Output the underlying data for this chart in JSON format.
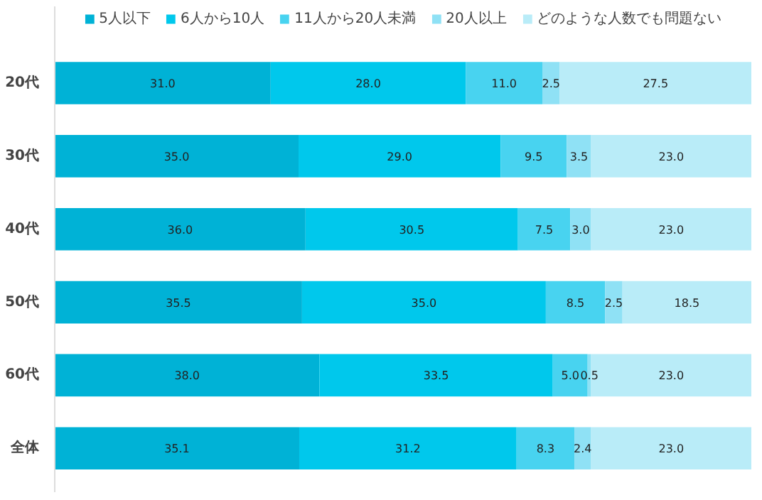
{
  "chart_data": {
    "type": "bar",
    "orientation": "horizontal",
    "stacked": true,
    "legend": "top",
    "grid": false,
    "categories": [
      "20代",
      "30代",
      "40代",
      "50代",
      "60代",
      "全体"
    ],
    "series": [
      {
        "name": "5人以下",
        "color": "#00b2d6",
        "values": [
          31.0,
          35.0,
          36.0,
          35.5,
          38.0,
          35.1
        ],
        "value_labels": [
          "31.0",
          "35.0",
          "36.0",
          "35.5",
          "38.0",
          "35.1"
        ]
      },
      {
        "name": "6人から10人",
        "color": "#00c8ec",
        "values": [
          28.0,
          29.0,
          30.5,
          35.0,
          33.5,
          31.2
        ],
        "value_labels": [
          "28.0",
          "29.0",
          "30.5",
          "35.0",
          "33.5",
          "31.2"
        ]
      },
      {
        "name": "11人から20人未満",
        "color": "#48d3f0",
        "values": [
          11.0,
          9.5,
          7.5,
          8.5,
          5.0,
          8.3
        ],
        "value_labels": [
          "11.0",
          "9.5",
          "7.5",
          "8.5",
          "5.0",
          "8.3"
        ]
      },
      {
        "name": "20人以上",
        "color": "#8fe1f5",
        "values": [
          2.5,
          3.5,
          3.0,
          2.5,
          0.5,
          2.4
        ],
        "value_labels": [
          "2.5",
          "3.5",
          "3.0",
          "2.5",
          "0.5",
          "2.4"
        ]
      },
      {
        "name": "どのような人数でも問題ない",
        "color": "#b9ecf8",
        "values": [
          27.5,
          23.0,
          23.0,
          18.5,
          23.0,
          23.0
        ],
        "value_labels": [
          "27.5",
          "23.0",
          "23.0",
          "18.5",
          "23.0",
          "23.0"
        ]
      }
    ]
  }
}
